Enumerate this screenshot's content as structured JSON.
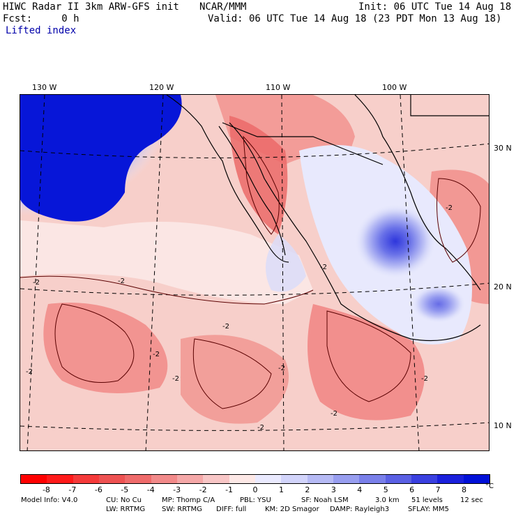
{
  "header": {
    "model": "HIWC Radar II 3km ARW-GFS init",
    "org": "NCAR/MMM",
    "init": "Init: 06 UTC Tue 14 Aug 18",
    "fcst": "Fcst:     0 h",
    "valid": "Valid: 06 UTC Tue 14 Aug 18 (23 PDT Mon 13 Aug 18)",
    "field": "Lifted index"
  },
  "axes": {
    "lon_labels": [
      "130 W",
      "120 W",
      "110 W",
      "100 W"
    ],
    "lat_labels": [
      "30 N",
      "20 N",
      "10 N"
    ]
  },
  "colorbar": {
    "tick_labels": [
      "-8",
      "-7",
      "-6",
      "-5",
      "-4",
      "-3",
      "-2",
      "-1",
      "0",
      "1",
      "2",
      "3",
      "4",
      "5",
      "6",
      "7",
      "8"
    ],
    "unit": "°C",
    "colors": [
      "#ff0000",
      "#ff1a1a",
      "#f53a3a",
      "#ee5252",
      "#ef6b6b",
      "#f28a8a",
      "#f5a8a8",
      "#f8c6c6",
      "#fde8e6",
      "#eaeaff",
      "#d2d4fb",
      "#b6baf5",
      "#989ef0",
      "#7a80ea",
      "#5a60e4",
      "#3a40e0",
      "#1a20dc",
      "#0010d8"
    ]
  },
  "contour_label": "-2",
  "footer": {
    "line1": [
      "Model Info: V4.0",
      "CU: No Cu",
      "MP: Thomp C/A",
      "PBL: YSU",
      "SF: Noah LSM",
      "3.0 km",
      "51 levels",
      "12 sec"
    ],
    "line2": [
      "LW: RRTMG",
      "SW: RRTMG",
      "DIFF: full",
      "KM: 2D Smagor",
      "DAMP: Rayleigh3",
      "SFLAY: MM5"
    ]
  }
}
